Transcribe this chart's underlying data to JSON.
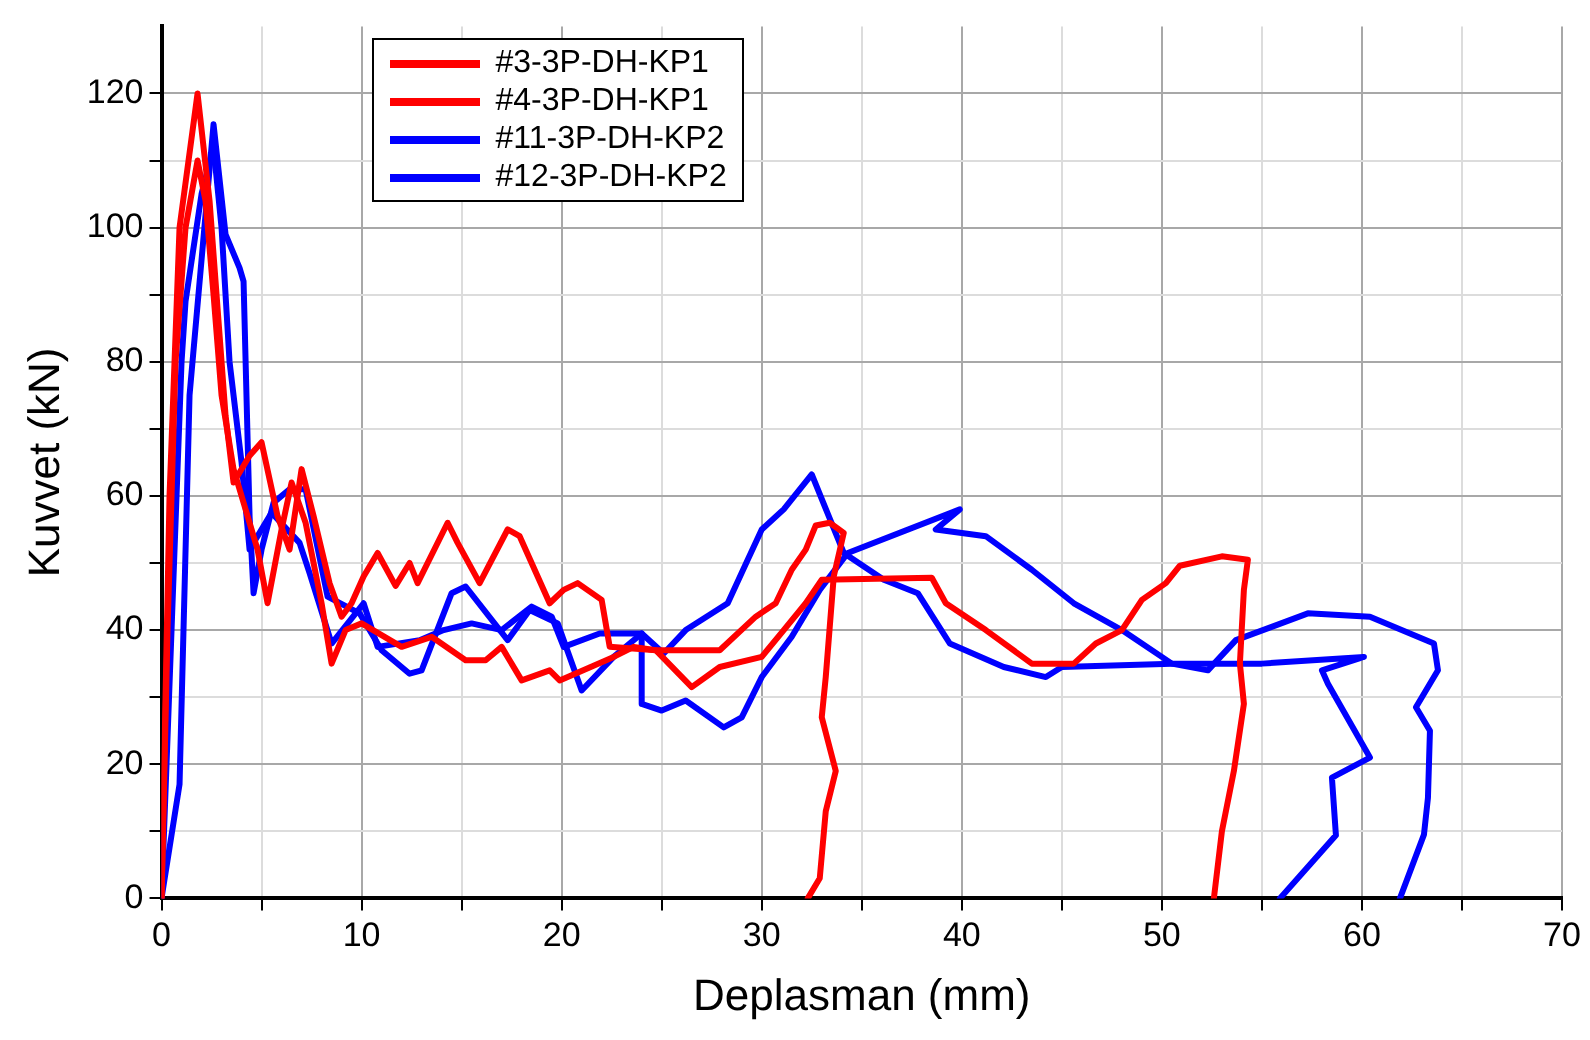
{
  "chart_data": {
    "type": "line",
    "xlabel": "Deplasman (mm)",
    "ylabel": "Kuvvet (kN)",
    "xlim": [
      0,
      70
    ],
    "ylim": [
      0,
      130
    ],
    "xticks": [
      0,
      {
        "value": 5,
        "label": null
      },
      10,
      {
        "value": 15,
        "label": null
      },
      20,
      {
        "value": 25,
        "label": null
      },
      30,
      {
        "value": 35,
        "label": null
      },
      40,
      {
        "value": 45,
        "label": null
      },
      50,
      {
        "value": 55,
        "label": null
      },
      60,
      {
        "value": 65,
        "label": null
      },
      70
    ],
    "yticks": [
      0,
      {
        "value": 10,
        "label": null
      },
      20,
      {
        "value": 30,
        "label": null
      },
      40,
      {
        "value": 50,
        "label": null
      },
      60,
      {
        "value": 70,
        "label": null
      },
      80,
      {
        "value": 90,
        "label": null
      },
      100,
      {
        "value": 110,
        "label": null
      },
      120
    ],
    "grid": true,
    "legend": "top left",
    "marker": "none",
    "line_style": "solid",
    "series": [
      {
        "name": "#3-3P-DH-KP1",
        "color": "#ff0000",
        "x": [
          0,
          0.4,
          0.9,
          1.8,
          2.4,
          3.2,
          3.6,
          4.4,
          5.0,
          5.8,
          6.4,
          7.0,
          7.6,
          8.4,
          9.0,
          9.5,
          10.1,
          10.8,
          11.7,
          12.4,
          12.8,
          14.3,
          14.8,
          15.9,
          17.3,
          17.9,
          19.4,
          20.1,
          20.8,
          22,
          22.4,
          24.7,
          27.9,
          29.7,
          30.7,
          31.5,
          32.2,
          32.7,
          33.4,
          34.1,
          33.6,
          33.2,
          33.0,
          33.7,
          33.2,
          32.9,
          32.3
        ],
        "values": [
          0,
          60,
          100,
          120,
          104,
          72,
          62,
          66,
          68,
          57,
          52,
          64,
          57,
          47,
          42,
          44,
          48,
          51.5,
          46.6,
          50,
          47,
          56,
          53,
          47,
          55,
          54,
          44,
          46,
          47,
          44.5,
          37.5,
          37,
          37,
          42,
          44,
          49,
          52,
          55.6,
          56,
          54.5,
          48,
          33,
          27,
          19,
          13,
          3,
          0
        ]
      },
      {
        "name": "#4-3P-DH-KP1",
        "color": "#ff0000",
        "x": [
          0,
          0.3,
          0.7,
          1.2,
          1.8,
          2.2,
          2.6,
          3.0,
          3.6,
          4.2,
          4.8,
          5.3,
          6.0,
          6.5,
          7.2,
          8.0,
          8.5,
          9.2,
          10,
          12,
          13.5,
          15.2,
          16.2,
          17,
          18,
          19.4,
          19.9,
          22.6,
          23.6,
          24.7,
          26.5,
          27.9,
          30,
          31.1,
          32.2,
          33,
          38.5,
          39.2,
          41.2,
          43.5,
          45.6,
          46.7,
          48,
          49,
          50.2,
          50.9,
          53,
          54.3,
          54.1,
          53.9,
          54.1,
          53.6,
          53,
          52.6
        ],
        "values": [
          0,
          40,
          80,
          100,
          110,
          104,
          90,
          75,
          64,
          58,
          52,
          44,
          55,
          62,
          56,
          44,
          35,
          40,
          41,
          37.5,
          39,
          35.5,
          35.5,
          37.5,
          32.5,
          34,
          32.5,
          36,
          37.5,
          37,
          31.5,
          34.5,
          36,
          40,
          44,
          47.5,
          47.8,
          44,
          40,
          35,
          35,
          38,
          40,
          44.5,
          47,
          49.6,
          51,
          50.5,
          46,
          35,
          29,
          19,
          10,
          0
        ]
      },
      {
        "name": "#11-3P-DH-KP2",
        "color": "#0000ff",
        "x": [
          0,
          0.9,
          1.4,
          2.6,
          3.2,
          3.9,
          4.1,
          4.4,
          4.6,
          5.0,
          5.6,
          6.4,
          7.2,
          8.3,
          9.9,
          11,
          12.4,
          13,
          14.5,
          15.2,
          17.3,
          18.4,
          19.8,
          21,
          22.6,
          24,
          25.1,
          26.2,
          28.3,
          29.3,
          30,
          31.1,
          32.5,
          34.1,
          36.1,
          37.8,
          39.4,
          42.1,
          44.2,
          45,
          50.5,
          55,
          60.1,
          58,
          58.3,
          60.4,
          58.5,
          58.7,
          55.9
        ],
        "values": [
          0,
          17,
          75,
          115.4,
          99,
          94,
          92,
          57,
          45.5,
          52,
          59,
          61,
          61,
          45,
          42.5,
          37,
          33.5,
          34,
          45.5,
          46.5,
          38.5,
          43,
          41,
          31,
          36,
          39.5,
          36.5,
          40,
          44,
          50.5,
          55,
          58,
          63.2,
          51.5,
          47.5,
          45.5,
          38,
          34.5,
          33,
          34.5,
          35,
          35,
          36,
          34,
          32,
          21,
          18,
          9.4,
          0
        ]
      },
      {
        "name": "#12-3P-DH-KP2",
        "color": "#0000ff",
        "x": [
          0,
          0.5,
          1.0,
          1.2,
          2.0,
          2.6,
          3.0,
          3.4,
          4.0,
          4.4,
          5.5,
          6.9,
          7.4,
          8.5,
          10.1,
          10.8,
          12.9,
          14.1,
          15.5,
          17,
          18.5,
          19.5,
          20.1,
          21.9,
          24,
          24,
          25,
          26.2,
          28.1,
          29,
          30,
          31.5,
          32.9,
          34.3,
          39.9,
          38.7,
          41.2,
          43.5,
          45.6,
          48,
          50.5,
          52.3,
          53.7,
          57.3,
          60.4,
          63.6,
          63.8,
          62.7,
          63.4,
          63.3,
          63.1,
          61.9
        ],
        "values": [
          0,
          40,
          80,
          89,
          105,
          112,
          100,
          80,
          65,
          52,
          57.5,
          53,
          48.5,
          38,
          44,
          37.5,
          38.5,
          40,
          41,
          40,
          43.5,
          42,
          37.5,
          39.5,
          39.5,
          29,
          28,
          29.5,
          25.5,
          27,
          33,
          39,
          46,
          51.5,
          58,
          55,
          54,
          49,
          44,
          40,
          35,
          34,
          38.5,
          42.5,
          42,
          38,
          34,
          28.5,
          25,
          15,
          9.5,
          0
        ]
      }
    ]
  }
}
